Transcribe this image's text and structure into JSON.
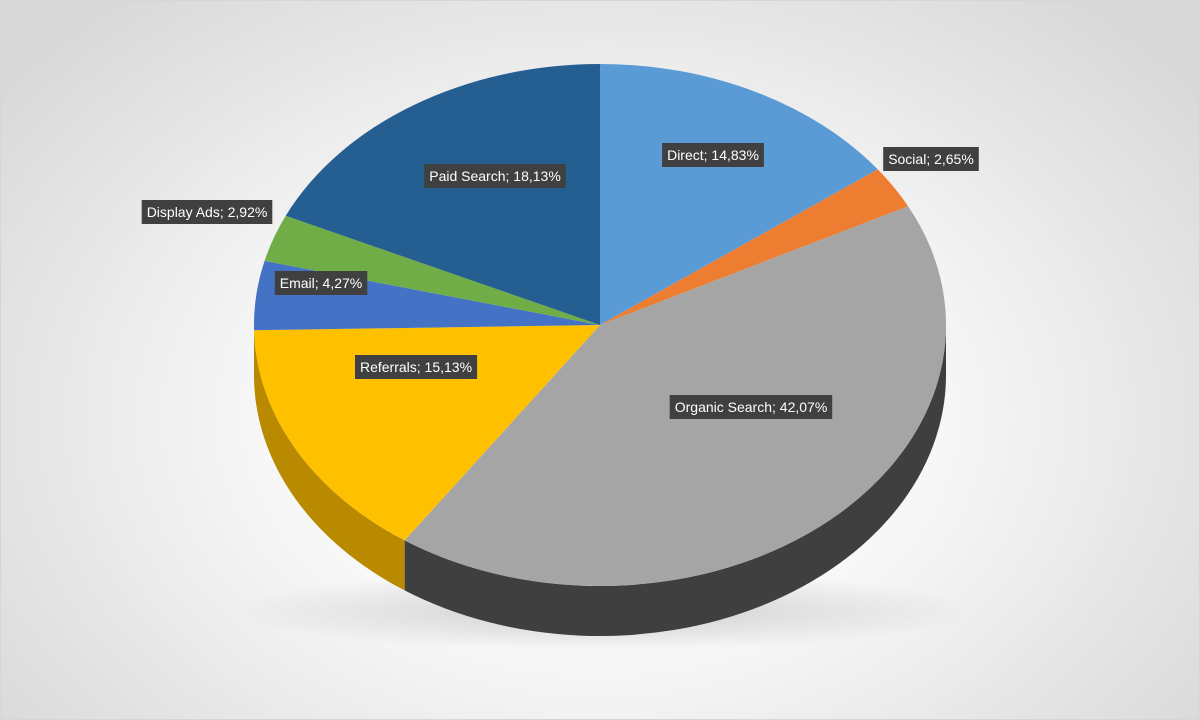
{
  "chart_data": {
    "type": "pie",
    "title": "",
    "legend": "none",
    "three_d": true,
    "slices": [
      {
        "name": "Direct",
        "value": 14.83,
        "label": "Direct; 14,83%",
        "color": "#5B9BD5",
        "side_color": "#3E74A6"
      },
      {
        "name": "Social",
        "value": 2.65,
        "label": "Social; 2,65%",
        "color": "#ED7D31",
        "side_color": "#B85E20"
      },
      {
        "name": "Organic Search",
        "value": 42.07,
        "label": "Organic Search; 42,07%",
        "color": "#A5A5A5",
        "side_color": "#3F3F3F"
      },
      {
        "name": "Referrals",
        "value": 15.13,
        "label": "Referrals; 15,13%",
        "color": "#FFC000",
        "side_color": "#B98A00"
      },
      {
        "name": "Email",
        "value": 4.27,
        "label": "Email; 4,27%",
        "color": "#4472C4",
        "side_color": "#2F4F8A"
      },
      {
        "name": "Display Ads",
        "value": 2.92,
        "label": "Display Ads; 2,92%",
        "color": "#70AD47",
        "side_color": "#4E7A31"
      },
      {
        "name": "Paid Search",
        "value": 18.13,
        "label": "Paid Search; 18,13%",
        "color": "#255E91",
        "side_color": "#173E60"
      }
    ]
  }
}
